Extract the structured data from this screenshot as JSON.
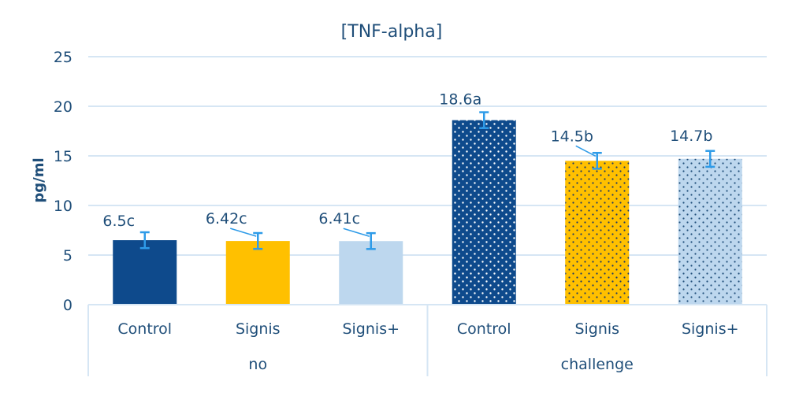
{
  "chart_data": {
    "type": "bar",
    "title": "[TNF-alpha]",
    "ylabel": "pg/ml",
    "xlabel": "",
    "ylim": [
      0,
      25
    ],
    "yticks": [
      0,
      5,
      10,
      15,
      20,
      25
    ],
    "grid": true,
    "legend": "none",
    "groups": [
      {
        "name": "no",
        "bars": [
          {
            "category": "Control",
            "value": 6.5,
            "error": 0.8,
            "label": "6.5c",
            "color": "#0e4a8c",
            "pattern": "solid"
          },
          {
            "category": "Signis",
            "value": 6.42,
            "error": 0.8,
            "label": "6.42c",
            "color": "#ffc000",
            "pattern": "solid"
          },
          {
            "category": "Signis+",
            "value": 6.41,
            "error": 0.8,
            "label": "6.41c",
            "color": "#bdd7ee",
            "pattern": "solid"
          }
        ]
      },
      {
        "name": "challenge",
        "bars": [
          {
            "category": "Control",
            "value": 18.6,
            "error": 0.8,
            "label": "18.6a",
            "color": "#0e4a8c",
            "pattern": "dotted"
          },
          {
            "category": "Signis",
            "value": 14.5,
            "error": 0.8,
            "label": "14.5b",
            "color": "#ffc000",
            "pattern": "dotted"
          },
          {
            "category": "Signis+",
            "value": 14.7,
            "error": 0.8,
            "label": "14.7b",
            "color": "#bdd7ee",
            "pattern": "dotted"
          }
        ]
      }
    ],
    "colors": {
      "text": "#1f4e79",
      "grid": "#d6e6f4",
      "error_bar": "#2e9be8"
    }
  }
}
